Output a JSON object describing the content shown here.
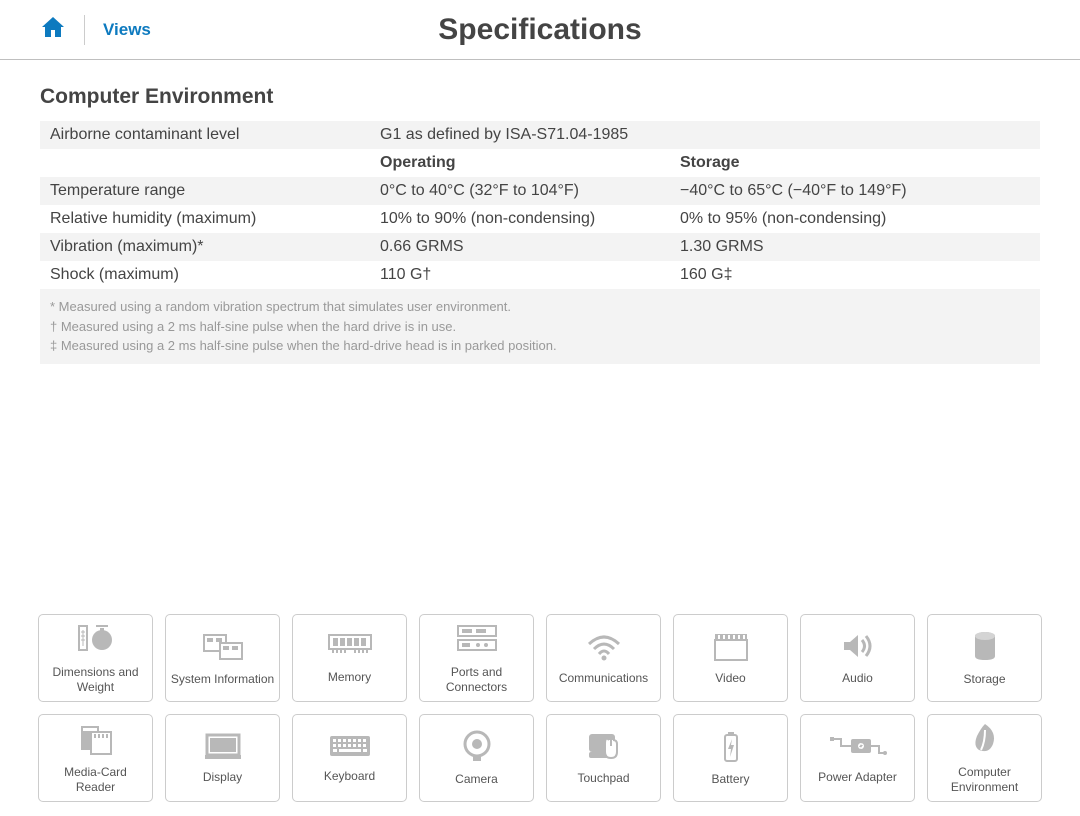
{
  "header": {
    "views_label": "Views",
    "title": "Specifications"
  },
  "section": {
    "title": "Computer Environment",
    "rows": [
      {
        "label": "Airborne contaminant level",
        "col2": "G1 as defined by ISA-S71.04-1985",
        "col3": "",
        "grey": true
      },
      {
        "label": "",
        "col2": "Operating",
        "col3": "Storage",
        "grey": false,
        "header": true
      },
      {
        "label": "Temperature range",
        "col2": "0°C to 40°C (32°F to 104°F)",
        "col3": "−40°C to 65°C (−40°F to 149°F)",
        "grey": true
      },
      {
        "label": "Relative humidity (maximum)",
        "col2": "10% to 90% (non-condensing)",
        "col3": "0% to 95% (non-condensing)",
        "grey": false
      },
      {
        "label": "Vibration (maximum)*",
        "col2": "0.66 GRMS",
        "col3": "1.30 GRMS",
        "grey": true
      },
      {
        "label": "Shock (maximum)",
        "col2": "110 G†",
        "col3": "160 G‡",
        "grey": false
      }
    ],
    "footnotes": [
      "* Measured using a random vibration spectrum that simulates user environment.",
      "† Measured using a 2 ms half-sine pulse when the hard drive is in use.",
      "‡ Measured using a 2 ms half-sine pulse when the hard-drive head is in parked position."
    ]
  },
  "nav": [
    {
      "label": "Dimensions and Weight",
      "icon": "dimensions"
    },
    {
      "label": "System Information",
      "icon": "system"
    },
    {
      "label": "Memory",
      "icon": "memory"
    },
    {
      "label": "Ports and Connectors",
      "icon": "ports"
    },
    {
      "label": "Communications",
      "icon": "wifi"
    },
    {
      "label": "Video",
      "icon": "video"
    },
    {
      "label": "Audio",
      "icon": "audio"
    },
    {
      "label": "Storage",
      "icon": "storage"
    },
    {
      "label": "Media-Card Reader",
      "icon": "mediacard"
    },
    {
      "label": "Display",
      "icon": "display"
    },
    {
      "label": "Keyboard",
      "icon": "keyboard"
    },
    {
      "label": "Camera",
      "icon": "camera"
    },
    {
      "label": "Touchpad",
      "icon": "touchpad"
    },
    {
      "label": "Battery",
      "icon": "battery"
    },
    {
      "label": "Power Adapter",
      "icon": "poweradapter"
    },
    {
      "label": "Computer Environment",
      "icon": "environment"
    }
  ],
  "colors": {
    "accent": "#0d7abf",
    "icon": "#b8b8b8",
    "border": "#cccccc",
    "row_grey": "#f3f3f3",
    "text": "#444444",
    "footnote": "#999999"
  }
}
